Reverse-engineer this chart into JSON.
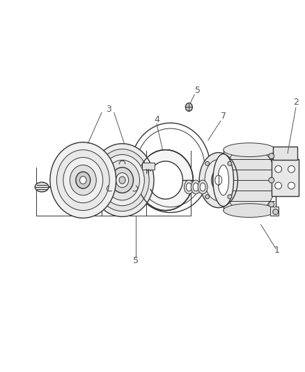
{
  "bg_color": "#ffffff",
  "line_color": "#333333",
  "label_color": "#555555",
  "fig_width": 4.38,
  "fig_height": 5.33,
  "dpi": 100
}
